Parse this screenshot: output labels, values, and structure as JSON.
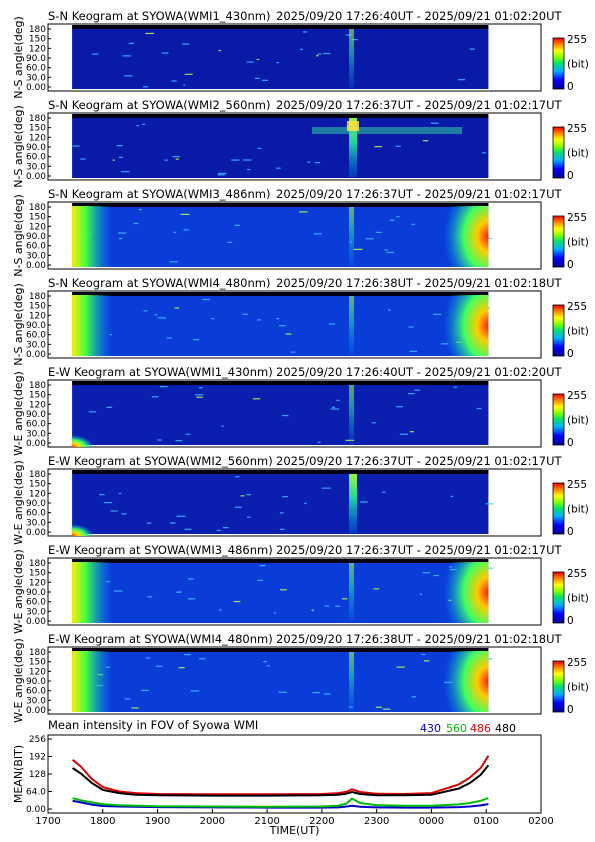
{
  "chart_data": [
    {
      "type": "heatmap",
      "title": "S-N Keogram at SYOWA(WMI1_430nm)",
      "time_range": "2025/09/20 17:26:40UT - 2025/09/21 01:02:20UT",
      "ylabel": "N-S angle(deg)",
      "yticks": [
        "180",
        "150",
        "120",
        "90.0",
        "60.0",
        "30.0",
        "0.00"
      ],
      "ylim": [
        0,
        180
      ],
      "colorbar": {
        "min": "0",
        "max": "255",
        "unit": "(bit)"
      },
      "coverage_hours": [
        17.44,
        1.04
      ],
      "brightening_hour": 22.55,
      "edge_glow": false
    },
    {
      "type": "heatmap",
      "title": "S-N Keogram at SYOWA(WMI2_560nm)",
      "time_range": "2025/09/20 17:26:37UT - 2025/09/21 01:02:17UT",
      "ylabel": "N-S angle(deg)",
      "yticks": [
        "180",
        "150",
        "120",
        "90.0",
        "60.0",
        "30.0",
        "0.00"
      ],
      "ylim": [
        0,
        180
      ],
      "colorbar": {
        "min": "0",
        "max": "255",
        "unit": "(bit)"
      },
      "coverage_hours": [
        17.44,
        1.04
      ],
      "brightening_hour": 22.55,
      "edge_glow": false
    },
    {
      "type": "heatmap",
      "title": "S-N Keogram at SYOWA(WMI3_486nm)",
      "time_range": "2025/09/20 17:26:37UT - 2025/09/21 01:02:17UT",
      "ylabel": "N-S angle(deg)",
      "yticks": [
        "180",
        "150",
        "120",
        "90.0",
        "60.0",
        "30.0",
        "0.00"
      ],
      "ylim": [
        0,
        180
      ],
      "colorbar": {
        "min": "0",
        "max": "255",
        "unit": "(bit)"
      },
      "coverage_hours": [
        17.44,
        1.04
      ],
      "brightening_hour": 22.55,
      "edge_glow": true
    },
    {
      "type": "heatmap",
      "title": "S-N Keogram at SYOWA(WMI4_480nm)",
      "time_range": "2025/09/20 17:26:38UT - 2025/09/21 01:02:18UT",
      "ylabel": "N-S angle(deg)",
      "yticks": [
        "180",
        "150",
        "120",
        "90.0",
        "60.0",
        "30.0",
        "0.00"
      ],
      "ylim": [
        0,
        180
      ],
      "colorbar": {
        "min": "0",
        "max": "255",
        "unit": "(bit)"
      },
      "coverage_hours": [
        17.44,
        1.04
      ],
      "brightening_hour": 22.55,
      "edge_glow": true
    },
    {
      "type": "heatmap",
      "title": "E-W Keogram at SYOWA(WMI1_430nm)",
      "time_range": "2025/09/20 17:26:40UT - 2025/09/21 01:02:20UT",
      "ylabel": "W-E angle(deg)",
      "yticks": [
        "180",
        "150",
        "120",
        "90.0",
        "60.0",
        "30.0",
        "0.00"
      ],
      "ylim": [
        0,
        180
      ],
      "colorbar": {
        "min": "0",
        "max": "255",
        "unit": "(bit)"
      },
      "coverage_hours": [
        17.44,
        1.04
      ],
      "brightening_hour": 22.55,
      "edge_glow": false
    },
    {
      "type": "heatmap",
      "title": "E-W Keogram at SYOWA(WMI2_560nm)",
      "time_range": "2025/09/20 17:26:37UT - 2025/09/21 01:02:17UT",
      "ylabel": "W-E angle(deg)",
      "yticks": [
        "180",
        "150",
        "120",
        "90.0",
        "60.0",
        "30.0",
        "0.00"
      ],
      "ylim": [
        0,
        180
      ],
      "colorbar": {
        "min": "0",
        "max": "255",
        "unit": "(bit)"
      },
      "coverage_hours": [
        17.44,
        1.04
      ],
      "brightening_hour": 22.55,
      "edge_glow": false
    },
    {
      "type": "heatmap",
      "title": "E-W Keogram at SYOWA(WMI3_486nm)",
      "time_range": "2025/09/20 17:26:37UT - 2025/09/21 01:02:17UT",
      "ylabel": "W-E angle(deg)",
      "yticks": [
        "180",
        "150",
        "120",
        "90.0",
        "60.0",
        "30.0",
        "0.00"
      ],
      "ylim": [
        0,
        180
      ],
      "colorbar": {
        "min": "0",
        "max": "255",
        "unit": "(bit)"
      },
      "coverage_hours": [
        17.44,
        1.04
      ],
      "brightening_hour": 22.55,
      "edge_glow": true
    },
    {
      "type": "heatmap",
      "title": "E-W Keogram at SYOWA(WMI4_480nm)",
      "time_range": "2025/09/20 17:26:38UT - 2025/09/21 01:02:18UT",
      "ylabel": "W-E angle(deg)",
      "yticks": [
        "180",
        "150",
        "120",
        "90.0",
        "60.0",
        "30.0",
        "0.00"
      ],
      "ylim": [
        0,
        180
      ],
      "colorbar": {
        "min": "0",
        "max": "255",
        "unit": "(bit)"
      },
      "coverage_hours": [
        17.44,
        1.04
      ],
      "brightening_hour": 22.55,
      "edge_glow": true
    },
    {
      "type": "line",
      "title": "Mean intensity in FOV of Syowa WMI",
      "xlabel": "TIME(UT)",
      "ylabel": "MEAN(BIT)",
      "xticks": [
        "1700",
        "1800",
        "1900",
        "2000",
        "2100",
        "2200",
        "2300",
        "0000",
        "0100",
        "0200"
      ],
      "yticks": [
        "256",
        "192",
        "128",
        "64.0",
        "0.00"
      ],
      "xlim": [
        17,
        26
      ],
      "ylim": [
        0,
        256
      ],
      "legend": {
        "placement": "top-right"
      },
      "series": [
        {
          "name": "430",
          "color": "#0000cc",
          "x": [
            17.45,
            17.6,
            17.8,
            18.0,
            18.3,
            18.6,
            19,
            20,
            21,
            22,
            22.3,
            22.45,
            22.55,
            22.7,
            23,
            23.5,
            24,
            24.5,
            24.7,
            24.9,
            25.04
          ],
          "y": [
            30,
            24,
            16,
            11,
            9,
            8,
            7,
            6,
            5,
            5,
            6,
            9,
            12,
            8,
            6,
            5,
            5,
            7,
            9,
            13,
            18
          ]
        },
        {
          "name": "560",
          "color": "#00bb00",
          "x": [
            17.45,
            17.6,
            17.8,
            18.0,
            18.3,
            18.6,
            19,
            20,
            21,
            22,
            22.3,
            22.45,
            22.55,
            22.7,
            23,
            23.5,
            24,
            24.5,
            24.7,
            24.9,
            25.04
          ],
          "y": [
            40,
            32,
            24,
            18,
            14,
            12,
            10,
            9,
            8,
            9,
            12,
            20,
            38,
            22,
            14,
            12,
            12,
            17,
            22,
            30,
            40
          ]
        },
        {
          "name": "486",
          "color": "#dd0000",
          "x": [
            17.45,
            17.6,
            17.8,
            18.0,
            18.3,
            18.6,
            19,
            20,
            21,
            22,
            22.3,
            22.45,
            22.55,
            22.7,
            23,
            23.5,
            24,
            24.5,
            24.7,
            24.9,
            25.04
          ],
          "y": [
            180,
            155,
            110,
            80,
            64,
            58,
            55,
            54,
            54,
            55,
            58,
            63,
            72,
            62,
            56,
            55,
            58,
            90,
            115,
            150,
            195
          ]
        },
        {
          "name": "480",
          "color": "#000000",
          "x": [
            17.45,
            17.6,
            17.8,
            18.0,
            18.3,
            18.6,
            19,
            20,
            21,
            22,
            22.3,
            22.45,
            22.55,
            22.7,
            23,
            23.5,
            24,
            24.5,
            24.7,
            24.9,
            25.04
          ],
          "y": [
            150,
            130,
            95,
            70,
            58,
            52,
            50,
            49,
            49,
            50,
            52,
            56,
            62,
            55,
            50,
            50,
            52,
            75,
            95,
            125,
            160
          ]
        }
      ]
    }
  ]
}
